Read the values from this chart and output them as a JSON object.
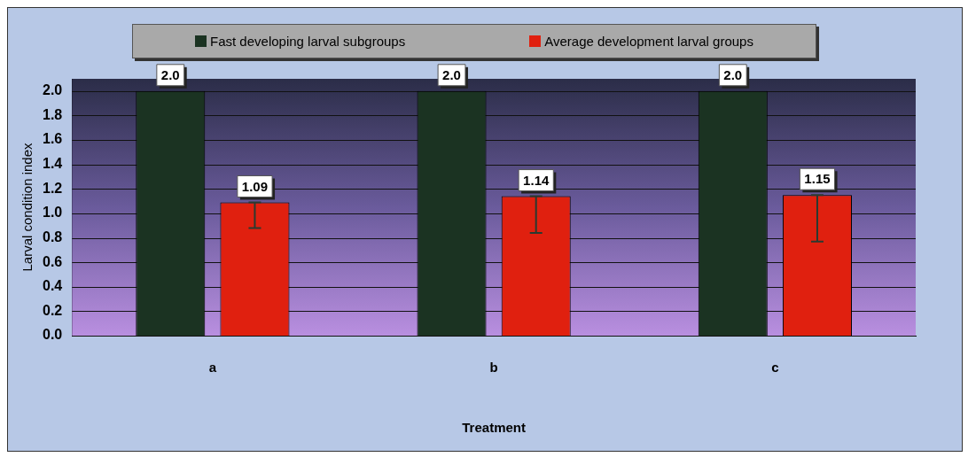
{
  "chart_data": {
    "type": "bar",
    "xlabel": "Treatment",
    "ylabel": "Larval condition index",
    "categories": [
      "a",
      "b",
      "c"
    ],
    "series": [
      {
        "name": "Fast developing larval subgroups",
        "color": "#1b3322",
        "values": [
          2.0,
          2.0,
          2.0
        ],
        "value_labels": [
          "2.0",
          "2.0",
          "2.0"
        ]
      },
      {
        "name": "Average development larval groups",
        "color": "#e0200f",
        "values": [
          1.09,
          1.14,
          1.15
        ],
        "value_labels": [
          "1.09",
          "1.14",
          "1.15"
        ],
        "errors": [
          [
            0.88,
            1.09
          ],
          [
            0.84,
            1.14
          ],
          [
            0.77,
            1.15
          ]
        ]
      }
    ],
    "ylim": [
      0,
      2.1
    ],
    "yticks": [
      {
        "value": 0,
        "label": "0.0"
      },
      {
        "value": 0.2,
        "label": "0.2"
      },
      {
        "value": 0.4,
        "label": "0.4"
      },
      {
        "value": 0.6,
        "label": "0.6"
      },
      {
        "value": 0.8,
        "label": "0.8"
      },
      {
        "value": 1,
        "label": "1.0"
      },
      {
        "value": 1.2,
        "label": "1.2"
      },
      {
        "value": 1.4,
        "label": "1.4"
      },
      {
        "value": 1.6,
        "label": "1.6"
      },
      {
        "value": 1.8,
        "label": "1.8"
      },
      {
        "value": 2,
        "label": "2.0"
      }
    ],
    "grid": "y",
    "legend": "top"
  }
}
